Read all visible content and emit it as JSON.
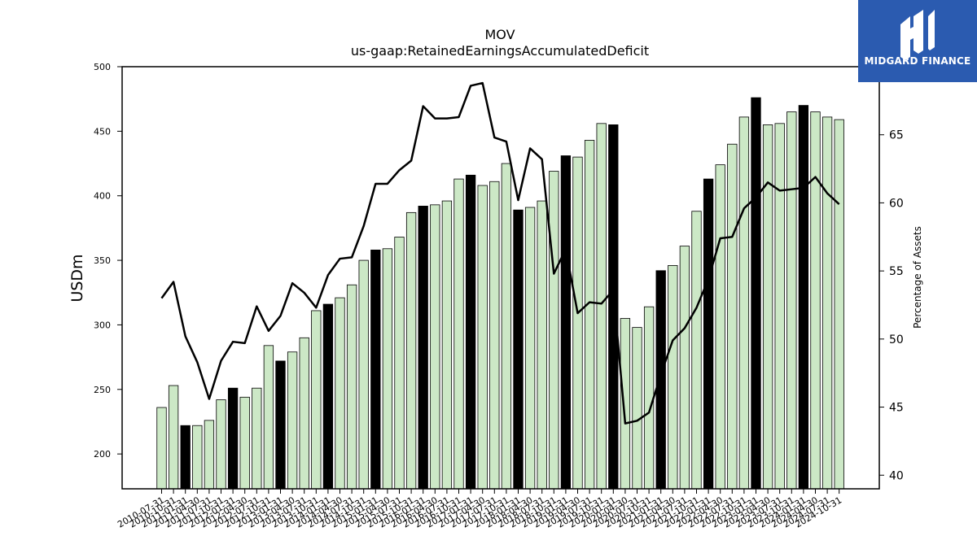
{
  "chart_data": {
    "type": "bar",
    "title": "MOV",
    "subtitle": "us-gaap:RetainedEarningsAccumulatedDeficit",
    "ylabel": "USDm",
    "y2label": "Percentage of Assets",
    "ylim": [
      173,
      500
    ],
    "y2lim": [
      39,
      70
    ],
    "yticks": [
      200,
      250,
      300,
      350,
      400,
      450,
      500
    ],
    "y2ticks": [
      40,
      45,
      50,
      55,
      60,
      65
    ],
    "xtick_labels": [
      "2010-07-31",
      "2010-10-31",
      "2011-01-31",
      "2011-04-30",
      "2011-07-31",
      "2011-10-31",
      "2012-01-31",
      "2012-04-30",
      "2012-07-31",
      "2012-10-31",
      "2013-01-31",
      "2013-04-30",
      "2013-07-31",
      "2013-10-31",
      "2014-01-31",
      "2014-04-30",
      "2014-07-31",
      "2014-10-31",
      "2015-01-31",
      "2015-04-30",
      "2015-07-31",
      "2015-10-31",
      "2016-01-31",
      "2016-04-30",
      "2016-07-31",
      "2016-10-31",
      "2017-01-31",
      "2017-04-30",
      "2017-07-31",
      "2017-10-31",
      "2018-01-31",
      "2018-04-30",
      "2018-07-31",
      "2018-10-31",
      "2019-01-31",
      "2019-04-30",
      "2019-07-31",
      "2019-10-31",
      "2020-01-31",
      "2020-04-30",
      "2020-07-31",
      "2020-10-31",
      "2021-01-31",
      "2021-04-30",
      "2021-07-31",
      "2021-10-31",
      "2022-01-31",
      "2022-04-30",
      "2022-07-31",
      "2022-10-31",
      "2023-01-31",
      "2023-04-30",
      "2023-07-31",
      "2023-10-31",
      "2024-01-31",
      "2024-04-30",
      "2024-07-31",
      "2024-10-31"
    ],
    "series": [
      {
        "type": "bar",
        "values": [
          236,
          253,
          222,
          222,
          226,
          242,
          251,
          244,
          251,
          284,
          272,
          279,
          290,
          311,
          316,
          321,
          331,
          350,
          358,
          359,
          368,
          387,
          392,
          393,
          396,
          413,
          416,
          408,
          411,
          425,
          389,
          391,
          396,
          419,
          431,
          430,
          443,
          456,
          455,
          305,
          298,
          314,
          342,
          346,
          361,
          388,
          413,
          424,
          440,
          461,
          476,
          455,
          456,
          465,
          470,
          465,
          461,
          459
        ],
        "highlight": [
          false,
          false,
          true,
          false,
          false,
          false,
          true,
          false,
          false,
          false,
          true,
          false,
          false,
          false,
          true,
          false,
          false,
          false,
          true,
          false,
          false,
          false,
          true,
          false,
          false,
          false,
          true,
          false,
          false,
          false,
          true,
          false,
          false,
          false,
          true,
          false,
          false,
          false,
          true,
          false,
          false,
          false,
          true,
          false,
          false,
          false,
          true,
          false,
          false,
          false,
          true,
          false,
          false,
          false,
          true,
          false,
          false,
          false
        ]
      },
      {
        "type": "line",
        "axis": "right",
        "values": [
          53.0,
          54.2,
          50.2,
          48.3,
          45.6,
          48.4,
          49.8,
          49.7,
          52.4,
          50.6,
          51.7,
          54.1,
          53.4,
          52.3,
          54.7,
          55.9,
          56.0,
          58.3,
          61.4,
          61.4,
          62.4,
          63.1,
          67.1,
          66.2,
          66.2,
          66.3,
          68.6,
          68.8,
          64.8,
          64.5,
          60.2,
          64.0,
          63.2,
          54.8,
          56.6,
          51.9,
          52.7,
          52.6,
          53.6,
          43.8,
          44.0,
          44.6,
          47.4,
          49.9,
          50.8,
          52.3,
          54.4,
          57.4,
          57.5,
          59.6,
          60.4,
          61.5,
          60.9,
          61.0,
          61.1,
          61.9,
          60.7,
          59.9
        ]
      }
    ],
    "highlight_color": "#000000",
    "bar_color": "#cce8c6",
    "line_color": "#000000"
  },
  "logo": {
    "text": "MIDGARD FINANCE",
    "bg": "#2b5bb0"
  }
}
